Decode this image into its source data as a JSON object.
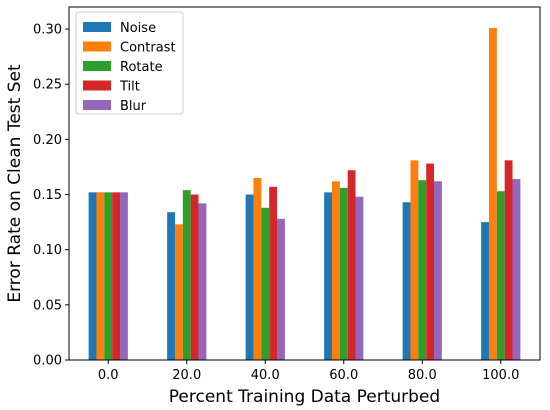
{
  "chart_data": {
    "type": "bar",
    "title": "",
    "xlabel": "Percent Training Data Perturbed",
    "ylabel": "Error Rate on Clean Test Set",
    "categories": [
      "0.0",
      "20.0",
      "40.0",
      "60.0",
      "80.0",
      "100.0"
    ],
    "ylim": [
      0,
      0.32
    ],
    "yticks": [
      "0.00",
      "0.05",
      "0.10",
      "0.15",
      "0.20",
      "0.25",
      "0.30"
    ],
    "legend_position": "top-left",
    "grid": false,
    "series": [
      {
        "name": "Noise",
        "color": "#1f77b4",
        "values": [
          0.152,
          0.134,
          0.15,
          0.152,
          0.143,
          0.125
        ]
      },
      {
        "name": "Contrast",
        "color": "#ff7f0e",
        "values": [
          0.152,
          0.123,
          0.165,
          0.162,
          0.181,
          0.301
        ]
      },
      {
        "name": "Rotate",
        "color": "#2ca02c",
        "values": [
          0.152,
          0.154,
          0.138,
          0.156,
          0.163,
          0.153
        ]
      },
      {
        "name": "Tilt",
        "color": "#d62728",
        "values": [
          0.152,
          0.15,
          0.157,
          0.172,
          0.178,
          0.181
        ]
      },
      {
        "name": "Blur",
        "color": "#9467bd",
        "values": [
          0.152,
          0.142,
          0.128,
          0.148,
          0.162,
          0.164
        ]
      }
    ]
  }
}
